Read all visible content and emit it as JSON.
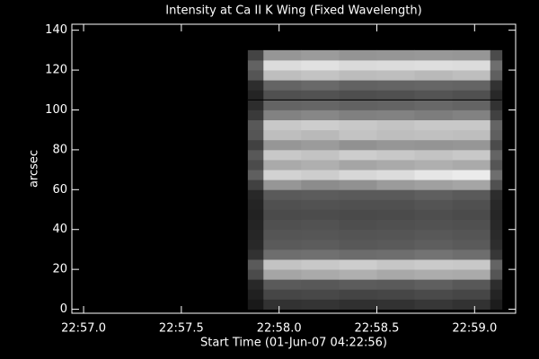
{
  "chart_data": {
    "type": "heatmap",
    "title": "Intensity at Ca II K Wing (Fixed Wavelength)",
    "xlabel": "Start Time (01-Jun-07 04:22:56)",
    "ylabel": "arcsec",
    "xlim": [
      -0.06,
      2.21
    ],
    "xticks": [
      {
        "value": 0,
        "label": "22:57.0"
      },
      {
        "value": 0.5,
        "label": "22:57.5"
      },
      {
        "value": 1,
        "label": "22:58.0"
      },
      {
        "value": 1.5,
        "label": "22:58.5"
      },
      {
        "value": 2,
        "label": "22:59.0"
      }
    ],
    "ylim": [
      -2,
      143
    ],
    "yticks": [
      0,
      20,
      40,
      60,
      80,
      100,
      120,
      140
    ],
    "colormap": "gray",
    "zlim": [
      0,
      255
    ],
    "x_edges": [
      0.84,
      0.92,
      1.113,
      1.307,
      1.5,
      1.693,
      1.887,
      2.08,
      2.14
    ],
    "y_edges": [
      0,
      5,
      10,
      15,
      20,
      25,
      30,
      35,
      40,
      45,
      50,
      55,
      60,
      65,
      70,
      75,
      80,
      85,
      90,
      95,
      100,
      105,
      110,
      115,
      120,
      125,
      130
    ],
    "z": [
      [
        25,
        50,
        52,
        48,
        50,
        55,
        50,
        28
      ],
      [
        32,
        70,
        72,
        68,
        70,
        74,
        70,
        36
      ],
      [
        40,
        90,
        88,
        92,
        90,
        95,
        88,
        45
      ],
      [
        75,
        165,
        170,
        175,
        168,
        172,
        170,
        85
      ],
      [
        90,
        195,
        200,
        205,
        198,
        202,
        200,
        100
      ],
      [
        50,
        110,
        112,
        108,
        110,
        115,
        110,
        55
      ],
      [
        40,
        90,
        92,
        88,
        90,
        94,
        90,
        45
      ],
      [
        38,
        85,
        86,
        84,
        85,
        88,
        85,
        42
      ],
      [
        36,
        80,
        82,
        78,
        80,
        82,
        80,
        40
      ],
      [
        34,
        75,
        76,
        74,
        75,
        78,
        75,
        38
      ],
      [
        36,
        80,
        82,
        80,
        80,
        84,
        80,
        40
      ],
      [
        40,
        90,
        92,
        90,
        90,
        95,
        90,
        45
      ],
      [
        65,
        150,
        140,
        145,
        155,
        160,
        165,
        80
      ],
      [
        95,
        210,
        205,
        215,
        220,
        230,
        235,
        110
      ],
      [
        75,
        170,
        175,
        165,
        170,
        175,
        170,
        85
      ],
      [
        88,
        200,
        195,
        205,
        200,
        195,
        200,
        100
      ],
      [
        65,
        150,
        155,
        145,
        150,
        148,
        150,
        75
      ],
      [
        85,
        190,
        185,
        195,
        190,
        192,
        190,
        95
      ],
      [
        88,
        200,
        205,
        200,
        195,
        200,
        200,
        100
      ],
      [
        58,
        130,
        135,
        128,
        130,
        125,
        130,
        65
      ],
      [
        45,
        100,
        102,
        98,
        100,
        104,
        100,
        50
      ],
      [
        36,
        80,
        82,
        78,
        80,
        84,
        80,
        40
      ],
      [
        45,
        100,
        105,
        98,
        100,
        102,
        100,
        50
      ],
      [
        85,
        190,
        195,
        188,
        190,
        185,
        190,
        95
      ],
      [
        98,
        220,
        225,
        218,
        220,
        222,
        220,
        110
      ],
      [
        68,
        150,
        155,
        148,
        150,
        152,
        150,
        75
      ]
    ],
    "hline": 105,
    "hline_color": "#000000"
  }
}
